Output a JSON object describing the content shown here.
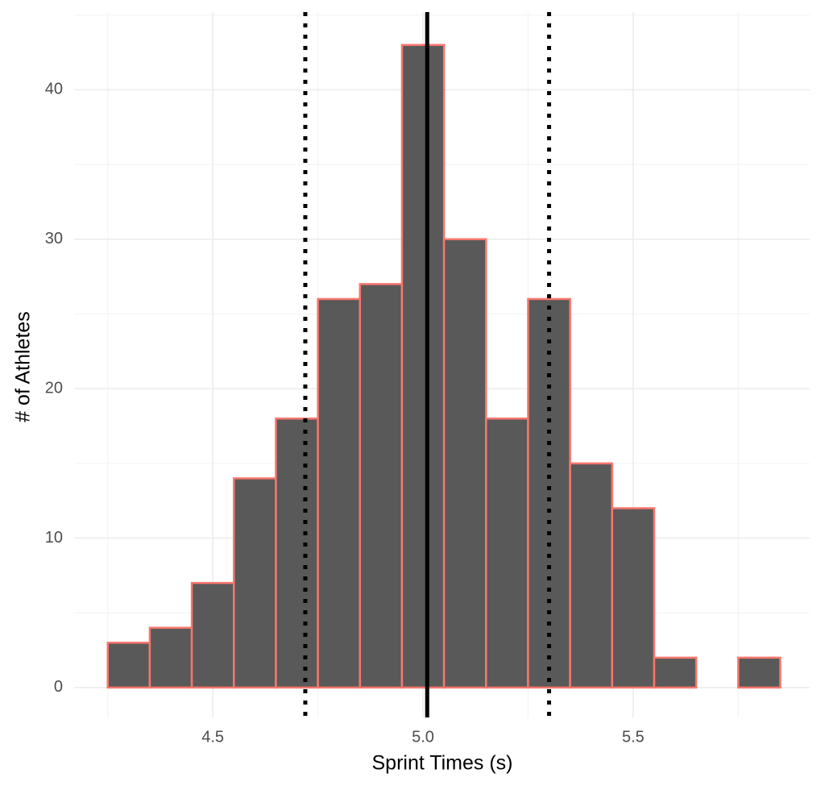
{
  "chart_data": {
    "type": "histogram",
    "x_label": "Sprint Times (s)",
    "y_label": "# of Athletes",
    "bins": [
      4.25,
      4.35,
      4.45,
      4.55,
      4.65,
      4.75,
      4.85,
      4.95,
      5.05,
      5.15,
      5.25,
      5.35,
      5.45,
      5.55,
      5.65,
      5.75,
      5.85
    ],
    "values": [
      3,
      4,
      7,
      14,
      18,
      26,
      27,
      43,
      30,
      18,
      26,
      15,
      12,
      2,
      0,
      2
    ],
    "color": "#595959",
    "edge_color": "#f8766d",
    "vlines": [
      {
        "value": 5.01,
        "style": "solid"
      },
      {
        "value": 4.72,
        "style": "dotted"
      },
      {
        "value": 5.3,
        "style": "dotted"
      }
    ],
    "xlim": [
      4.17,
      5.92
    ],
    "ylim": [
      -2,
      45.2
    ],
    "xticks": [
      {
        "value": 4.5,
        "label": "4.5"
      },
      {
        "value": 5.0,
        "label": "5.0"
      },
      {
        "value": 5.5,
        "label": "5.5"
      }
    ],
    "yticks": [
      0,
      10,
      20,
      30,
      40
    ],
    "grid": true,
    "minor_grid": true
  }
}
